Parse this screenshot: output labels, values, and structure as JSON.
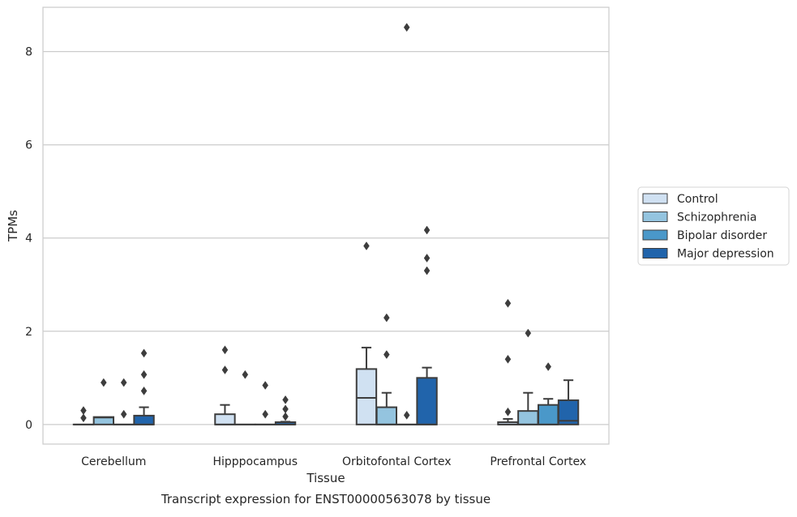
{
  "chart_data": {
    "type": "box",
    "title": "",
    "xlabel": "Tissue",
    "ylabel": "TPMs",
    "caption": "Transcript expression for ENST00000563078 by tissue",
    "ylim": [
      -0.42,
      8.95
    ],
    "yticks": [
      0,
      2,
      4,
      6,
      8
    ],
    "grid": "horizontal",
    "legend_position": "right",
    "categories": [
      "Cerebellum",
      "Hipppocampus",
      "Orbitofontal Cortex",
      "Prefrontal Cortex"
    ],
    "series": [
      {
        "name": "Control",
        "color": "#d0e1f2",
        "boxes": [
          {
            "q1": 0,
            "median": 0,
            "q3": 0,
            "whisker_low": 0,
            "whisker_high": 0,
            "outliers": [
              0.3,
              0.14
            ]
          },
          {
            "q1": 0,
            "median": 0,
            "q3": 0.22,
            "whisker_low": 0,
            "whisker_high": 0.42,
            "outliers": [
              1.6,
              1.17
            ]
          },
          {
            "q1": 0,
            "median": 0.57,
            "q3": 1.19,
            "whisker_low": 0,
            "whisker_high": 1.65,
            "outliers": [
              3.83
            ]
          },
          {
            "q1": 0,
            "median": 0,
            "q3": 0.05,
            "whisker_low": 0,
            "whisker_high": 0.12,
            "outliers": [
              2.6,
              1.4,
              0.27
            ]
          }
        ]
      },
      {
        "name": "Schizophrenia",
        "color": "#94c4df",
        "boxes": [
          {
            "q1": 0,
            "median": 0.15,
            "q3": 0.16,
            "whisker_low": 0,
            "whisker_high": 0.16,
            "outliers": [
              0.9
            ]
          },
          {
            "q1": 0,
            "median": 0,
            "q3": 0,
            "whisker_low": 0,
            "whisker_high": 0,
            "outliers": [
              1.07
            ]
          },
          {
            "q1": 0,
            "median": 0,
            "q3": 0.37,
            "whisker_low": 0,
            "whisker_high": 0.68,
            "outliers": [
              2.29,
              1.5
            ]
          },
          {
            "q1": 0,
            "median": 0,
            "q3": 0.29,
            "whisker_low": 0,
            "whisker_high": 0.68,
            "outliers": [
              1.96
            ]
          }
        ]
      },
      {
        "name": "Bipolar disorder",
        "color": "#4a98c9",
        "boxes": [
          {
            "q1": 0,
            "median": 0,
            "q3": 0,
            "whisker_low": 0,
            "whisker_high": 0,
            "outliers": [
              0.9,
              0.22
            ]
          },
          {
            "q1": 0,
            "median": 0,
            "q3": 0,
            "whisker_low": 0,
            "whisker_high": 0,
            "outliers": [
              0.84,
              0.22
            ]
          },
          {
            "q1": 0,
            "median": 0,
            "q3": 0,
            "whisker_low": 0,
            "whisker_high": 0,
            "outliers": [
              8.52,
              0.2
            ]
          },
          {
            "q1": 0,
            "median": 0,
            "q3": 0.42,
            "whisker_low": 0,
            "whisker_high": 0.55,
            "outliers": [
              1.24
            ]
          }
        ]
      },
      {
        "name": "Major depression",
        "color": "#2164ab",
        "boxes": [
          {
            "q1": 0,
            "median": 0,
            "q3": 0.19,
            "whisker_low": 0,
            "whisker_high": 0.37,
            "outliers": [
              1.53,
              1.07,
              0.72
            ]
          },
          {
            "q1": 0,
            "median": 0,
            "q3": 0.05,
            "whisker_low": 0,
            "whisker_high": 0.06,
            "outliers": [
              0.53,
              0.33,
              0.17
            ]
          },
          {
            "q1": 0,
            "median": 0,
            "q3": 1.0,
            "whisker_low": 0,
            "whisker_high": 1.22,
            "outliers": [
              4.17,
              3.57,
              3.3
            ]
          },
          {
            "q1": 0,
            "median": 0.08,
            "q3": 0.52,
            "whisker_low": 0,
            "whisker_high": 0.95,
            "outliers": []
          }
        ]
      }
    ]
  }
}
